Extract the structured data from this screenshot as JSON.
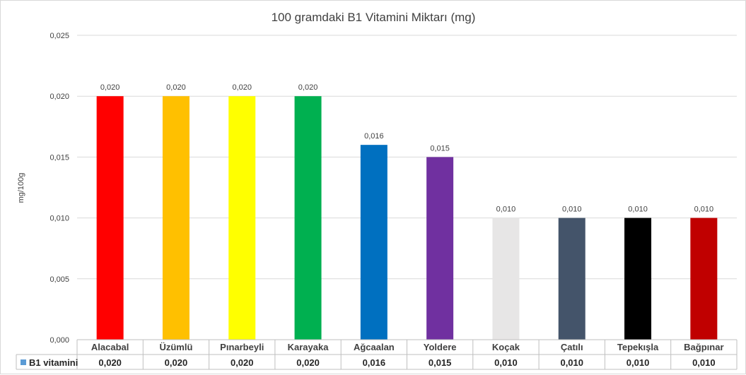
{
  "chart_data": {
    "type": "bar",
    "title": "100 gramdaki B1 Vitamini Miktarı (mg)",
    "ylabel": "mg/100g",
    "ylim": [
      0,
      0.025
    ],
    "yticks": [
      "0,000",
      "0,005",
      "0,010",
      "0,015",
      "0,020",
      "0,025"
    ],
    "grid": true,
    "legend_placement": "data-table",
    "categories": [
      "Alacabal",
      "Üzümlü",
      "Pınarbeyli",
      "Karayaka",
      "Ağcaalan",
      "Yoldere",
      "Koçak",
      "Çatılı",
      "Tepekışla",
      "Bağpınar"
    ],
    "series": [
      {
        "name": "B1 vitamini",
        "legend_color": "#5B9BD5",
        "values": [
          0.02,
          0.02,
          0.02,
          0.02,
          0.016,
          0.015,
          0.01,
          0.01,
          0.01,
          0.01
        ],
        "labels": [
          "0,020",
          "0,020",
          "0,020",
          "0,020",
          "0,016",
          "0,015",
          "0,010",
          "0,010",
          "0,010",
          "0,010"
        ],
        "colors": [
          "#FF0000",
          "#FFC000",
          "#FFFF00",
          "#00B050",
          "#0070C0",
          "#7030A0",
          "#E7E6E6",
          "#44546A",
          "#000000",
          "#C00000"
        ]
      }
    ]
  }
}
